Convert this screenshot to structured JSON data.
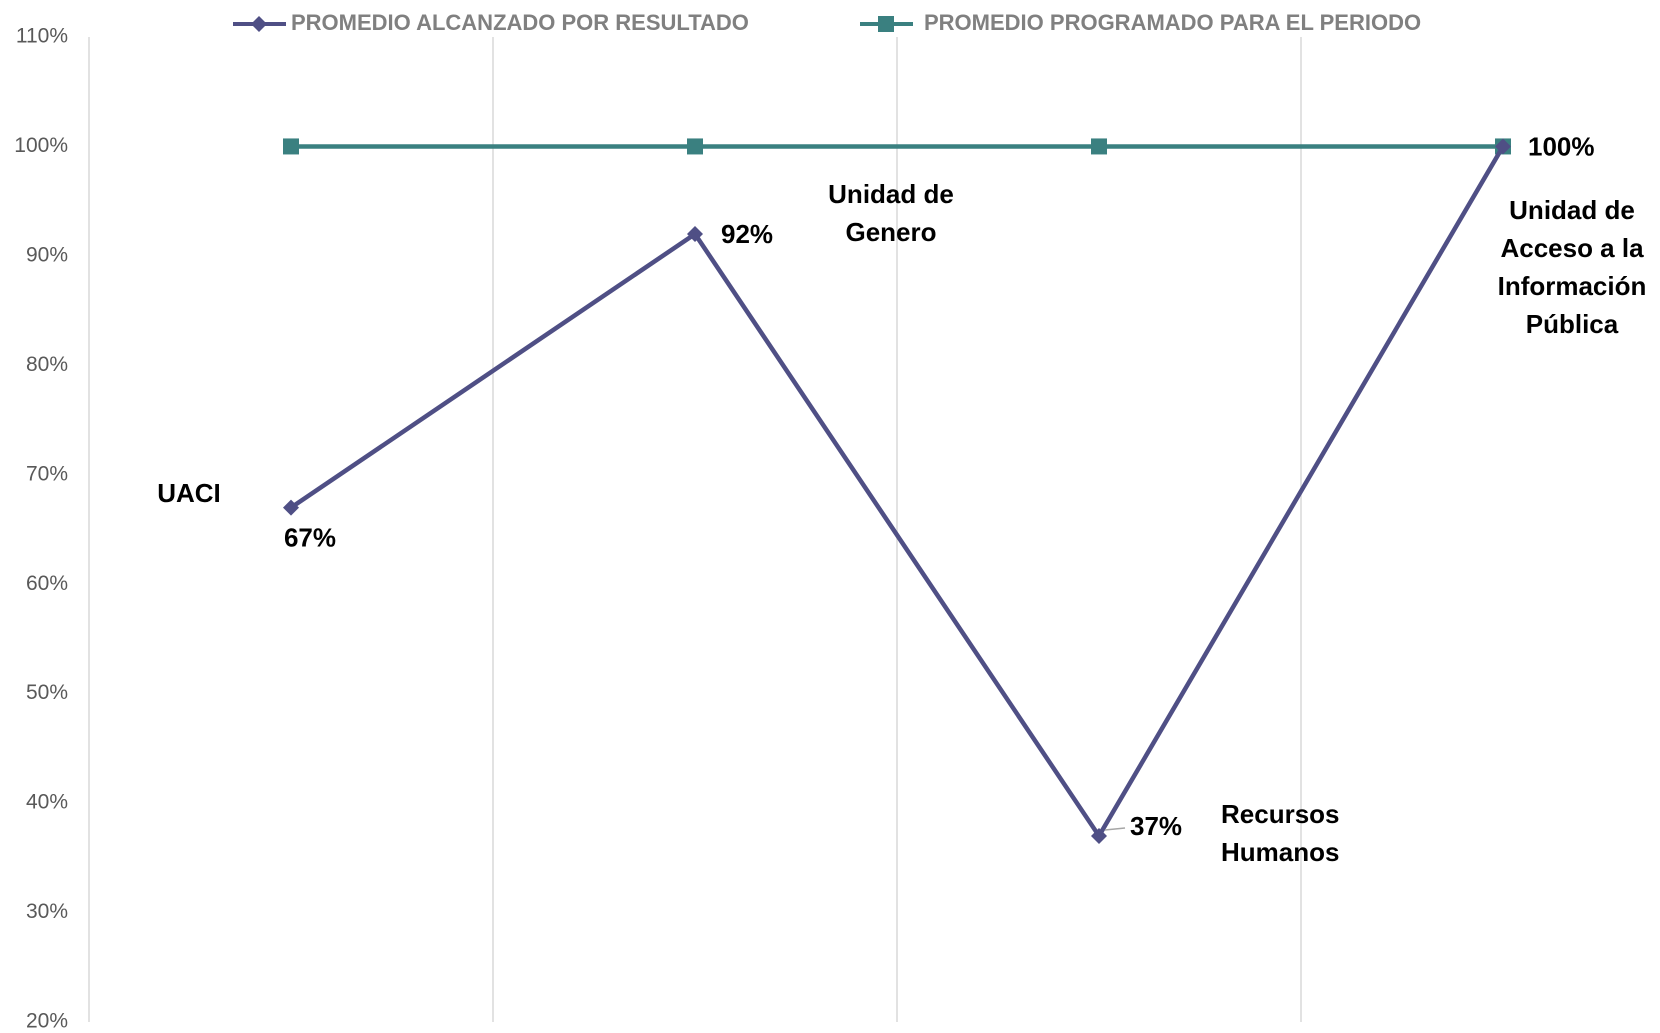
{
  "chart_data": {
    "type": "line",
    "categories": [
      "UACI",
      "Unidad de Genero",
      "Recursos Humanos",
      "Unidad de Acceso a la Información Pública"
    ],
    "series": [
      {
        "name": "PROMEDIO ALCANZADO POR RESULTADO",
        "color": "#4f4f85",
        "marker": "diamond",
        "values": [
          67,
          92,
          37,
          100
        ],
        "value_labels": [
          "67%",
          "92%",
          "37%",
          "100%"
        ]
      },
      {
        "name": "PROMEDIO PROGRAMADO PARA EL PERIODO",
        "color": "#3a8080",
        "marker": "square",
        "values": [
          100,
          100,
          100,
          100
        ]
      }
    ],
    "ylim": [
      20,
      110
    ],
    "yticks": [
      {
        "value": 20,
        "label": "20%"
      },
      {
        "value": 30,
        "label": "30%"
      },
      {
        "value": 40,
        "label": "40%"
      },
      {
        "value": 50,
        "label": "50%"
      },
      {
        "value": 60,
        "label": "60%"
      },
      {
        "value": 70,
        "label": "70%"
      },
      {
        "value": 80,
        "label": "80%"
      },
      {
        "value": 90,
        "label": "90%"
      },
      {
        "value": 100,
        "label": "100%"
      },
      {
        "value": 110,
        "label": "110%"
      }
    ],
    "legend": "top"
  }
}
